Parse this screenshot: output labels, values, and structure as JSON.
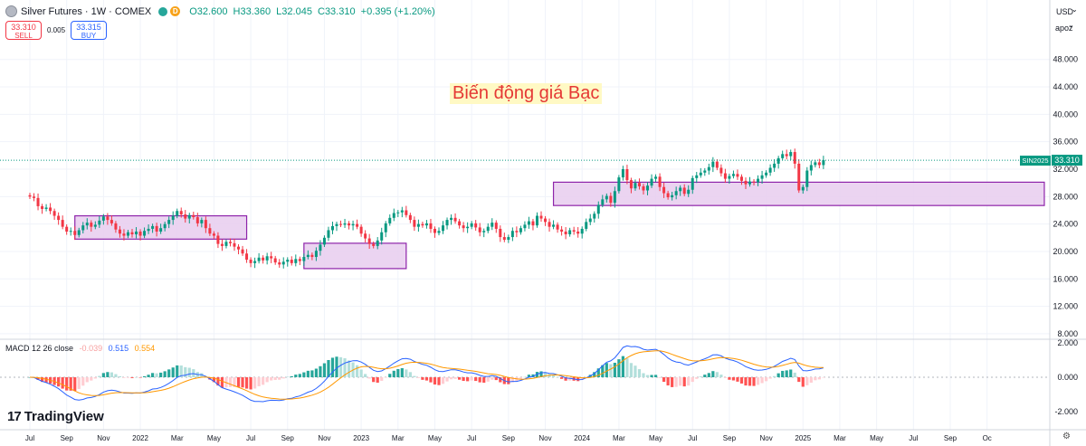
{
  "header": {
    "title": "Silver Futures · 1W · COMEX",
    "badge": "D",
    "open": "O32.600",
    "high": "H33.360",
    "low": "L32.045",
    "close": "C33.310",
    "change": "+0.395 (+1.20%)"
  },
  "trade": {
    "sell_price": "33.310",
    "sell_label": "SELL",
    "spread": "0.005",
    "buy_price": "33.315",
    "buy_label": "BUY"
  },
  "currency": "USD",
  "scale_mode": "apoz",
  "annotation": "Biến động giá Bạc",
  "price_tag": {
    "symbol": "SIN2025",
    "value": "33.310"
  },
  "macd": {
    "label": "MACD 12 26 close",
    "histogram": "-0.039",
    "macd": "0.515",
    "signal": "0.554"
  },
  "brand": "TradingView",
  "colors": {
    "up": "#089981",
    "down": "#f23645",
    "box_fill": "#e8cdee",
    "box_stroke": "#8e24aa",
    "macd_line": "#2962ff",
    "signal_line": "#ff9800"
  },
  "chart_data": {
    "type": "candlestick",
    "interval": "1W",
    "price_axis": {
      "ticks": [
        "48.000",
        "44.000",
        "40.000",
        "36.000",
        "32.000",
        "28.000",
        "24.000",
        "20.000",
        "16.000",
        "12.000",
        "8.000"
      ]
    },
    "macd_axis": {
      "ticks": [
        "2.000",
        "0.000",
        "-2.000"
      ]
    },
    "time_axis": [
      {
        "label": "Jul",
        "week": 0
      },
      {
        "label": "Sep",
        "week": 9
      },
      {
        "label": "Nov",
        "week": 18
      },
      {
        "label": "2022",
        "week": 27
      },
      {
        "label": "Mar",
        "week": 36
      },
      {
        "label": "May",
        "week": 45
      },
      {
        "label": "Jul",
        "week": 54
      },
      {
        "label": "Sep",
        "week": 63
      },
      {
        "label": "Nov",
        "week": 72
      },
      {
        "label": "2023",
        "week": 81
      },
      {
        "label": "Mar",
        "week": 90
      },
      {
        "label": "May",
        "week": 99
      },
      {
        "label": "Jul",
        "week": 108
      },
      {
        "label": "Sep",
        "week": 117
      },
      {
        "label": "Nov",
        "week": 126
      },
      {
        "label": "2024",
        "week": 135
      },
      {
        "label": "Mar",
        "week": 144
      },
      {
        "label": "May",
        "week": 153
      },
      {
        "label": "Jul",
        "week": 162
      },
      {
        "label": "Sep",
        "week": 171
      },
      {
        "label": "Nov",
        "week": 180
      },
      {
        "label": "2025",
        "week": 189
      },
      {
        "label": "Mar",
        "week": 198
      },
      {
        "label": "May",
        "week": 207
      },
      {
        "label": "Jul",
        "week": 216
      },
      {
        "label": "Sep",
        "week": 225
      },
      {
        "label": "Oc",
        "week": 234
      }
    ],
    "close": [
      28.0,
      27.8,
      26.6,
      26.2,
      26.4,
      25.9,
      25.2,
      24.6,
      23.6,
      22.9,
      23.0,
      22.4,
      23.1,
      23.8,
      24.2,
      23.6,
      23.9,
      24.5,
      25.1,
      24.6,
      24.1,
      23.2,
      22.6,
      22.3,
      22.8,
      22.5,
      22.9,
      22.3,
      23.0,
      23.3,
      23.7,
      22.9,
      23.4,
      24.0,
      24.6,
      25.2,
      25.9,
      25.4,
      24.8,
      25.3,
      25.0,
      24.1,
      24.6,
      23.4,
      22.6,
      22.3,
      21.1,
      20.8,
      21.4,
      21.2,
      20.7,
      20.3,
      19.7,
      18.8,
      18.3,
      18.6,
      19.1,
      18.7,
      19.3,
      19.0,
      18.4,
      18.1,
      18.5,
      18.8,
      18.3,
      18.9,
      18.6,
      19.2,
      19.5,
      19.2,
      20.1,
      21.0,
      22.0,
      23.1,
      23.7,
      24.0,
      23.9,
      24.1,
      23.8,
      24.0,
      23.6,
      22.6,
      21.9,
      21.1,
      20.8,
      21.6,
      22.8,
      24.1,
      24.9,
      25.6,
      25.7,
      26.0,
      25.3,
      24.6,
      23.6,
      24.0,
      23.8,
      24.1,
      23.3,
      22.7,
      23.0,
      23.8,
      24.6,
      24.9,
      24.4,
      23.8,
      23.4,
      23.6,
      24.1,
      23.5,
      22.8,
      23.0,
      23.6,
      24.2,
      23.3,
      22.1,
      21.7,
      22.1,
      23.0,
      22.8,
      23.4,
      23.9,
      24.4,
      23.8,
      25.2,
      24.8,
      24.3,
      23.6,
      23.9,
      23.2,
      22.9,
      22.5,
      23.1,
      22.9,
      22.6,
      23.3,
      24.3,
      24.8,
      25.5,
      26.8,
      27.6,
      28.1,
      27.1,
      28.8,
      30.8,
      32.0,
      30.4,
      29.2,
      30.0,
      29.5,
      28.9,
      29.6,
      30.6,
      30.9,
      29.4,
      28.5,
      27.9,
      28.2,
      28.8,
      29.3,
      28.4,
      29.0,
      30.7,
      31.1,
      31.5,
      31.8,
      32.3,
      33.1,
      32.2,
      31.4,
      30.6,
      31.0,
      31.3,
      30.9,
      30.3,
      29.8,
      30.2,
      30.1,
      30.6,
      31.1,
      31.5,
      32.2,
      32.8,
      33.6,
      34.2,
      33.9,
      34.5,
      32.8,
      28.9,
      29.4,
      31.8,
      32.6,
      33.0,
      32.6,
      33.31
    ],
    "boxes": [
      {
        "from_week": 11,
        "to_week": 53,
        "low": 21.8,
        "high": 25.2
      },
      {
        "from_week": 67,
        "to_week": 92,
        "low": 17.5,
        "high": 21.2
      },
      {
        "from_week": 128,
        "to_week": 248,
        "low": 26.7,
        "high": 30.1
      }
    ],
    "last_price": 33.31
  }
}
